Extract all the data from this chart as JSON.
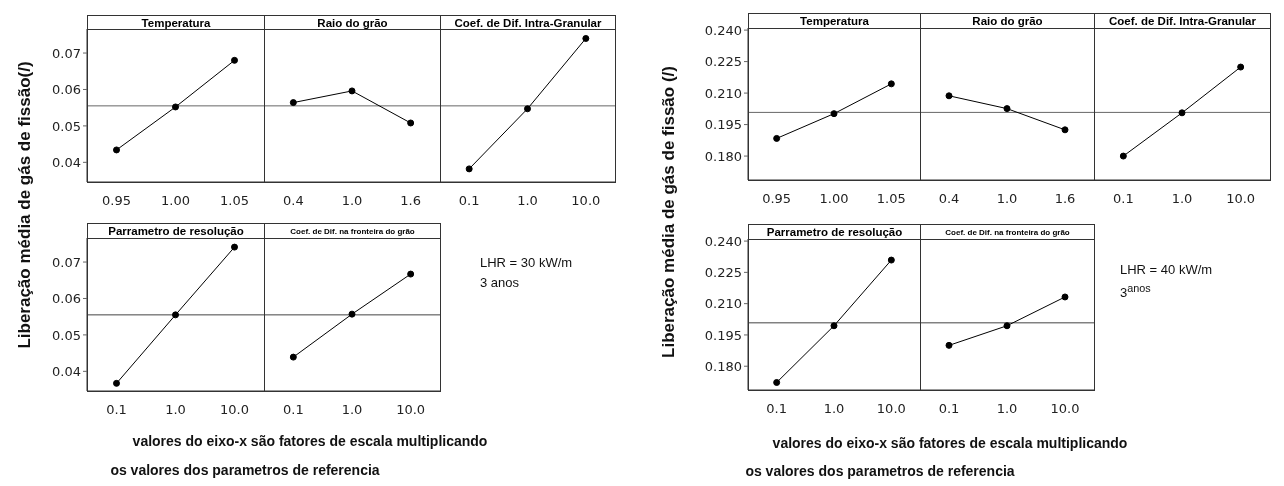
{
  "chart_data": [
    {
      "type": "line",
      "title": "Temperatura",
      "ylabel": "Liberação média de gás de fissão(/)",
      "categories": [
        "0.95",
        "1.00",
        "1.05"
      ],
      "values": [
        0.0434,
        0.0552,
        0.068
      ],
      "color": "#000000",
      "marker": "circle",
      "ylim": [
        0.0346,
        0.0766
      ],
      "yticks": [
        0.04,
        0.05,
        0.06,
        0.07
      ],
      "ref_lines": [
        {
          "axis": "y",
          "value": 0.0555,
          "color": "#666666"
        }
      ]
    },
    {
      "type": "line",
      "title": "Raio do grão",
      "categories": [
        "0.4",
        "1.0",
        "1.6"
      ],
      "values": [
        0.0564,
        0.0596,
        0.0508
      ],
      "color": "#000000",
      "marker": "circle",
      "ylim": [
        0.0346,
        0.0766
      ],
      "tick_labels": "x",
      "ref_lines": [
        {
          "axis": "y",
          "value": 0.0555,
          "color": "#666666"
        }
      ]
    },
    {
      "type": "line",
      "title": "Coef. de Dif. Intra-Granular",
      "categories": [
        "0.1",
        "1.0",
        "10.0"
      ],
      "values": [
        0.0382,
        0.0547,
        0.074
      ],
      "color": "#000000",
      "marker": "circle",
      "ylim": [
        0.0346,
        0.0766
      ],
      "tick_labels": "x",
      "ref_lines": [
        {
          "axis": "y",
          "value": 0.0555,
          "color": "#666666"
        }
      ]
    },
    {
      "type": "line",
      "title": "Parrametro de resolução",
      "categories": [
        "0.1",
        "1.0",
        "10.0"
      ],
      "values": [
        0.0367,
        0.0555,
        0.0741
      ],
      "color": "#000000",
      "marker": "circle",
      "ylim": [
        0.0346,
        0.0766
      ],
      "yticks": [
        0.04,
        0.05,
        0.06,
        0.07
      ],
      "ref_lines": [
        {
          "axis": "y",
          "value": 0.0555,
          "color": "#444444"
        }
      ]
    },
    {
      "type": "line",
      "title": "Coef. de Dif. na fronteira do grão",
      "categories": [
        "0.1",
        "1.0",
        "10.0"
      ],
      "values": [
        0.0439,
        0.0557,
        0.0667
      ],
      "color": "#000000",
      "marker": "circle",
      "ylim": [
        0.0346,
        0.0766
      ],
      "tick_labels": "x",
      "ref_lines": [
        {
          "axis": "y",
          "value": 0.0555,
          "color": "#444444"
        }
      ],
      "annotations": [
        "LHR = 30 kW/m",
        "3 anos",
        "valores do eixo-x são fatores de escala multiplicando",
        "os valores dos parametros de referencia"
      ]
    },
    {
      "type": "line",
      "title": "Temperatura",
      "ylabel": "Liberação média de gás de fissão (/)",
      "categories": [
        "0.95",
        "1.00",
        "1.05"
      ],
      "values": [
        0.1884,
        0.2002,
        0.2144
      ],
      "color": "#000000",
      "marker": "circle",
      "ylim": [
        0.1686,
        0.241
      ],
      "yticks": [
        {
          "value": 0.18,
          "label": "0.180"
        },
        0.195,
        {
          "value": 0.21,
          "label": "0.210"
        },
        0.225,
        {
          "value": 0.24,
          "label": "0.240"
        }
      ],
      "ref_lines": [
        {
          "axis": "y",
          "value": 0.2008,
          "color": "#666666"
        }
      ]
    },
    {
      "type": "line",
      "title": "Raio do grão",
      "categories": [
        "0.4",
        "1.0",
        "1.6"
      ],
      "values": [
        0.2087,
        0.2026,
        0.1925
      ],
      "color": "#000000",
      "marker": "circle",
      "ylim": [
        0.1686,
        0.241
      ],
      "tick_labels": "x",
      "ref_lines": [
        {
          "axis": "y",
          "value": 0.2008,
          "color": "#666666"
        }
      ]
    },
    {
      "type": "line",
      "title": "Coef. de Dif. Intra-Granular",
      "categories": [
        "0.1",
        "1.0",
        "10.0"
      ],
      "values": [
        0.18,
        0.2006,
        0.2224
      ],
      "color": "#000000",
      "marker": "circle",
      "ylim": [
        0.1686,
        0.241
      ],
      "tick_labels": "x",
      "ref_lines": [
        {
          "axis": "y",
          "value": 0.2008,
          "color": "#666666"
        }
      ]
    },
    {
      "type": "line",
      "title": "Parrametro de resolução",
      "categories": [
        "0.1",
        "1.0",
        "10.0"
      ],
      "values": [
        0.1722,
        0.1994,
        0.2309
      ],
      "color": "#000000",
      "marker": "circle",
      "ylim": [
        0.1686,
        0.241
      ],
      "yticks": [
        {
          "value": 0.18,
          "label": "0.180"
        },
        0.195,
        {
          "value": 0.21,
          "label": "0.210"
        },
        0.225,
        {
          "value": 0.24,
          "label": "0.240"
        }
      ],
      "ref_lines": [
        {
          "axis": "y",
          "value": 0.2008,
          "color": "#444444"
        }
      ]
    },
    {
      "type": "line",
      "title": "Coef. de Dif. na fronteira do grão",
      "categories": [
        "0.1",
        "1.0",
        "10.0"
      ],
      "values": [
        0.19,
        0.1994,
        0.2132
      ],
      "color": "#000000",
      "marker": "circle",
      "ylim": [
        0.1686,
        0.241
      ],
      "tick_labels": "x",
      "ref_lines": [
        {
          "axis": "y",
          "value": 0.2008,
          "color": "#444444"
        }
      ],
      "annotations": [
        "LHR = 40 kW/m",
        "3$^{anos}$",
        "valores do eixo-x são fatores de escala multiplicando",
        "os valores dos parametros de referencia"
      ]
    }
  ]
}
